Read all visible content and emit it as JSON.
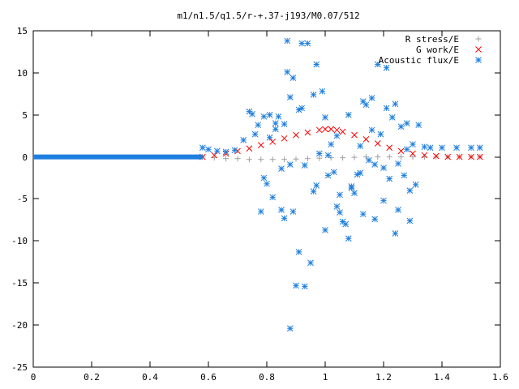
{
  "chart_data": {
    "type": "scatter",
    "title": "m1/n1.5/q1.5/r-+.37-j193/M0.07/512",
    "xlim": [
      0,
      1.6
    ],
    "ylim": [
      -25,
      15
    ],
    "x_ticks": [
      "0",
      "0.2",
      "0.4",
      "0.6",
      "0.8",
      "1",
      "1.2",
      "1.4",
      "1.6"
    ],
    "y_ticks": [
      "15",
      "10",
      "5",
      "0",
      "-5",
      "-10",
      "-15",
      "-20",
      "-25"
    ],
    "grid": false,
    "legend_position": "top-right",
    "series": [
      {
        "name": "R stress/E",
        "marker": "plus",
        "color": "#a0a0a0",
        "x": [
          0.58,
          0.62,
          0.66,
          0.7,
          0.74,
          0.78,
          0.82,
          0.86,
          0.9,
          0.94,
          0.98,
          1.02,
          1.06,
          1.1,
          1.14,
          1.18,
          1.22,
          1.26,
          1.3,
          1.34,
          1.38,
          1.42,
          1.46,
          1.5,
          1.53
        ],
        "y": [
          0.0,
          -0.1,
          -0.2,
          -0.2,
          -0.3,
          -0.3,
          -0.3,
          -0.3,
          -0.25,
          -0.2,
          -0.15,
          -0.1,
          -0.1,
          -0.05,
          0.0,
          0.0,
          0.0,
          0.0,
          0.0,
          0.0,
          0.0,
          0.0,
          0.0,
          0.0,
          0.0
        ]
      },
      {
        "name": "G work/E",
        "marker": "cross",
        "color": "#ff0000",
        "x": [
          0.58,
          0.62,
          0.66,
          0.7,
          0.74,
          0.78,
          0.82,
          0.86,
          0.9,
          0.94,
          0.98,
          1.0,
          1.02,
          1.04,
          1.06,
          1.1,
          1.14,
          1.18,
          1.22,
          1.26,
          1.3,
          1.34,
          1.38,
          1.42,
          1.46,
          1.5,
          1.53
        ],
        "y": [
          0.0,
          0.2,
          0.4,
          0.7,
          1.0,
          1.4,
          1.8,
          2.2,
          2.6,
          2.9,
          3.2,
          3.3,
          3.3,
          3.2,
          3.0,
          2.6,
          2.1,
          1.6,
          1.1,
          0.7,
          0.4,
          0.2,
          0.1,
          0.0,
          0.0,
          0.0,
          0.0
        ]
      },
      {
        "name": "Acoustic flux/E",
        "marker": "star",
        "color": "#1f7fdf",
        "x": [
          0.58,
          0.6,
          0.63,
          0.66,
          0.69,
          0.72,
          0.74,
          0.75,
          0.77,
          0.78,
          0.79,
          0.8,
          0.81,
          0.82,
          0.83,
          0.84,
          0.85,
          0.86,
          0.86,
          0.87,
          0.87,
          0.88,
          0.88,
          0.89,
          0.9,
          0.91,
          0.91,
          0.92,
          0.93,
          0.94,
          0.95,
          0.96,
          0.97,
          0.98,
          0.99,
          1.0,
          1.01,
          1.02,
          1.03,
          1.04,
          1.05,
          1.06,
          1.07,
          1.08,
          1.09,
          1.1,
          1.11,
          1.12,
          1.13,
          1.14,
          1.15,
          1.16,
          1.17,
          1.18,
          1.19,
          1.2,
          1.21,
          1.22,
          1.23,
          1.24,
          1.25,
          1.26,
          1.27,
          1.28,
          1.29,
          1.3,
          1.31,
          1.32,
          1.34,
          1.36,
          1.4,
          1.45,
          1.5,
          1.53,
          0.76,
          0.79,
          0.83,
          0.88,
          0.92,
          0.96,
          1.0,
          1.04,
          1.08,
          1.12,
          1.16,
          1.2,
          1.24,
          1.28,
          0.81,
          0.85,
          0.89,
          0.93,
          0.97,
          1.01,
          1.05,
          1.09,
          1.13,
          1.17,
          1.21,
          1.25,
          1.29
        ],
        "y": [
          1.1,
          0.9,
          0.7,
          0.6,
          0.8,
          2.0,
          5.4,
          5.1,
          3.8,
          -6.5,
          4.8,
          -3.2,
          2.3,
          -4.8,
          4.0,
          4.8,
          -6.3,
          3.9,
          -7.3,
          13.8,
          10.1,
          -20.4,
          -0.9,
          9.4,
          -15.3,
          -11.3,
          5.6,
          13.5,
          -15.4,
          13.5,
          -12.6,
          7.4,
          11.0,
          0.4,
          7.8,
          -8.7,
          -2.2,
          1.5,
          -1.8,
          -5.9,
          -4.5,
          -7.7,
          -8.0,
          -9.7,
          -3.5,
          -4.3,
          -2.1,
          1.3,
          -6.8,
          6.2,
          -0.4,
          7.0,
          -7.4,
          11.0,
          2.7,
          -1.3,
          10.6,
          -2.6,
          4.7,
          -9.1,
          -6.3,
          3.6,
          -2.2,
          4.0,
          -7.6,
          1.5,
          -3.3,
          3.8,
          1.2,
          1.1,
          1.1,
          1.1,
          1.1,
          1.1,
          2.7,
          -2.5,
          3.3,
          7.1,
          5.8,
          -4.1,
          4.7,
          2.5,
          5.0,
          -1.9,
          3.2,
          -5.2,
          6.3,
          0.9,
          5.0,
          -1.4,
          -6.5,
          -1.0,
          -3.4,
          0.2,
          -6.6,
          -3.7,
          6.6,
          -0.9,
          5.8,
          -0.8,
          -4.0
        ]
      },
      {
        "name": "",
        "marker": "line",
        "color": "#1f7fdf",
        "x": [
          0.0,
          0.58
        ],
        "y": [
          0.0,
          0.0
        ]
      }
    ]
  }
}
